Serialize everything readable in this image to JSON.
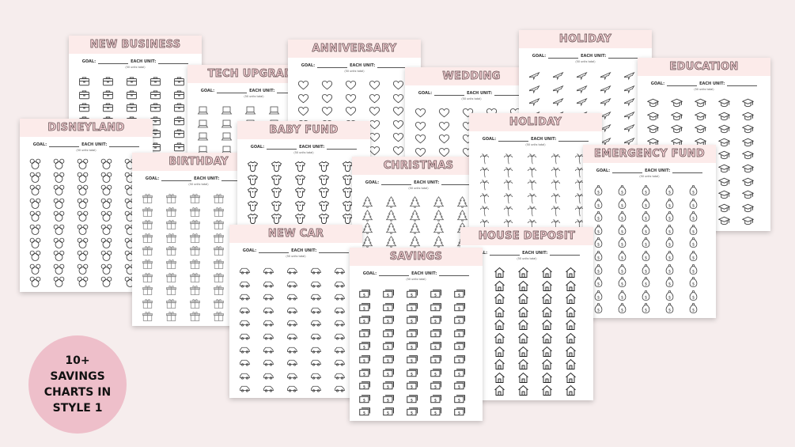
{
  "labels": {
    "goal": "GOAL:",
    "each_unit": "EACH UNIT:",
    "units_total": "(50 units total)"
  },
  "colors": {
    "background": "#f6eded",
    "header_band": "#fcebea",
    "title_fill": "#f3ccd0",
    "badge": "#eebfca"
  },
  "badge": {
    "text": "10+ SAVINGS CHARTS IN STYLE 1"
  },
  "charts": [
    {
      "title": "NEW BUSINESS",
      "icon": "briefcase-icon"
    },
    {
      "title": "TECH UPGRADE",
      "icon": "laptop-icon"
    },
    {
      "title": "ANNIVERSARY",
      "icon": "heart-icon"
    },
    {
      "title": "WEDDING",
      "icon": "heart-icon"
    },
    {
      "title": "HOLIDAY",
      "icon": "airplane-icon"
    },
    {
      "title": "EDUCATION",
      "icon": "graduation-cap-icon"
    },
    {
      "title": "DISNEYLAND",
      "icon": "mouse-ears-icon"
    },
    {
      "title": "BIRTHDAY",
      "icon": "gift-icon"
    },
    {
      "title": "BABY FUND",
      "icon": "onesie-icon"
    },
    {
      "title": "CHRISTMAS",
      "icon": "christmas-tree-icon"
    },
    {
      "title": "HOLIDAY",
      "icon": "palm-tree-icon"
    },
    {
      "title": "EMERGENCY FUND",
      "icon": "money-bag-icon"
    },
    {
      "title": "NEW CAR",
      "icon": "car-icon"
    },
    {
      "title": "HOUSE DEPOSIT",
      "icon": "house-icon"
    },
    {
      "title": "SAVINGS",
      "icon": "cash-icon"
    }
  ]
}
